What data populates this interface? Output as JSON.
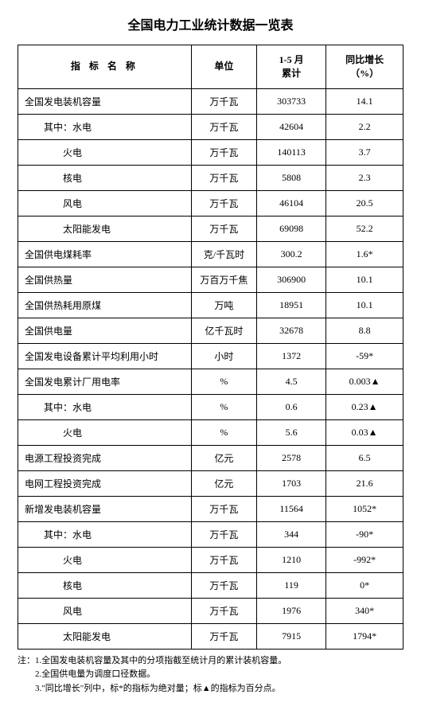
{
  "title": "全国电力工业统计数据一览表",
  "headers": {
    "name": "指 标 名 称",
    "unit": "单位",
    "cumulative": "1-5 月\n累计",
    "yoy": "同比增长\n（%）"
  },
  "rows": [
    {
      "indent": 0,
      "name": "全国发电装机容量",
      "unit": "万千瓦",
      "cum": "303733",
      "yoy": "14.1"
    },
    {
      "indent": 1,
      "name": "其中：水电",
      "unit": "万千瓦",
      "cum": "42604",
      "yoy": "2.2"
    },
    {
      "indent": 2,
      "name": "火电",
      "unit": "万千瓦",
      "cum": "140113",
      "yoy": "3.7"
    },
    {
      "indent": 2,
      "name": "核电",
      "unit": "万千瓦",
      "cum": "5808",
      "yoy": "2.3"
    },
    {
      "indent": 2,
      "name": "风电",
      "unit": "万千瓦",
      "cum": "46104",
      "yoy": "20.5"
    },
    {
      "indent": 2,
      "name": "太阳能发电",
      "unit": "万千瓦",
      "cum": "69098",
      "yoy": "52.2"
    },
    {
      "indent": 0,
      "name": "全国供电煤耗率",
      "unit": "克/千瓦时",
      "cum": "300.2",
      "yoy": "1.6*"
    },
    {
      "indent": 0,
      "name": "全国供热量",
      "unit": "万百万千焦",
      "cum": "306900",
      "yoy": "10.1"
    },
    {
      "indent": 0,
      "name": "全国供热耗用原煤",
      "unit": "万吨",
      "cum": "18951",
      "yoy": "10.1"
    },
    {
      "indent": 0,
      "name": "全国供电量",
      "unit": "亿千瓦时",
      "cum": "32678",
      "yoy": "8.8"
    },
    {
      "indent": 0,
      "name": "全国发电设备累计平均利用小时",
      "unit": "小时",
      "cum": "1372",
      "yoy": "-59*"
    },
    {
      "indent": 0,
      "name": "全国发电累计厂用电率",
      "unit": "%",
      "cum": "4.5",
      "yoy": "0.003▲"
    },
    {
      "indent": 1,
      "name": "其中：水电",
      "unit": "%",
      "cum": "0.6",
      "yoy": "0.23▲"
    },
    {
      "indent": 2,
      "name": "火电",
      "unit": "%",
      "cum": "5.6",
      "yoy": "0.03▲"
    },
    {
      "indent": 0,
      "name": "电源工程投资完成",
      "unit": "亿元",
      "cum": "2578",
      "yoy": "6.5"
    },
    {
      "indent": 0,
      "name": "电网工程投资完成",
      "unit": "亿元",
      "cum": "1703",
      "yoy": "21.6"
    },
    {
      "indent": 0,
      "name": "新增发电装机容量",
      "unit": "万千瓦",
      "cum": "11564",
      "yoy": "1052*"
    },
    {
      "indent": 1,
      "name": "其中：水电",
      "unit": "万千瓦",
      "cum": "344",
      "yoy": "-90*"
    },
    {
      "indent": 2,
      "name": "火电",
      "unit": "万千瓦",
      "cum": "1210",
      "yoy": "-992*"
    },
    {
      "indent": 2,
      "name": "核电",
      "unit": "万千瓦",
      "cum": "119",
      "yoy": "0*"
    },
    {
      "indent": 2,
      "name": "风电",
      "unit": "万千瓦",
      "cum": "1976",
      "yoy": "340*"
    },
    {
      "indent": 2,
      "name": "太阳能发电",
      "unit": "万千瓦",
      "cum": "7915",
      "yoy": "1794*"
    }
  ],
  "notes": {
    "line1": "注：1.全国发电装机容量及其中的分项指截至统计月的累计装机容量。",
    "line2": "2.全国供电量为调度口径数据。",
    "line3": "3.\"同比增长\"列中，标*的指标为绝对量；标▲的指标为百分点。"
  }
}
